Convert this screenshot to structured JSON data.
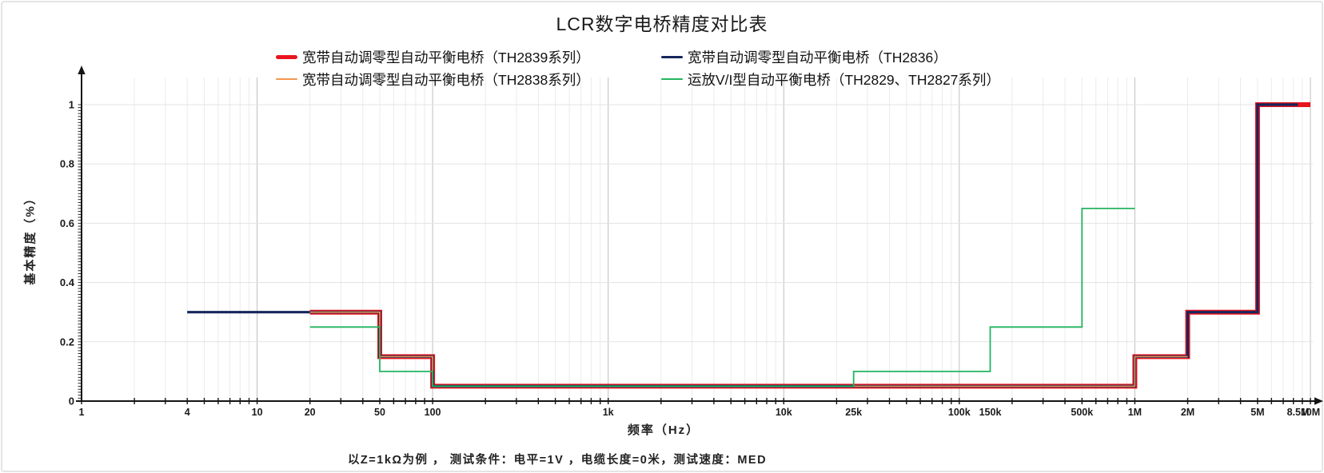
{
  "title": "LCR数字电桥精度对比表",
  "note": "以Z=1kΩ为例 ， 测试条件：电平=1V ，电缆长度=0米，测试速度：MED",
  "chart_data": {
    "type": "line",
    "subtype": "step-accuracy-curves",
    "title": "LCR数字电桥精度对比表",
    "xlabel": "频率（Hz）",
    "ylabel": "基本精度（%）",
    "x_scale": "log",
    "xlim": [
      1,
      10000000
    ],
    "ylim": [
      0,
      1.05
    ],
    "grid": true,
    "legend_position": "top",
    "x_ticks": [
      {
        "value": 1,
        "label": "1"
      },
      {
        "value": 4,
        "label": "4"
      },
      {
        "value": 10,
        "label": "10"
      },
      {
        "value": 20,
        "label": "20"
      },
      {
        "value": 50,
        "label": "50"
      },
      {
        "value": 100,
        "label": "100"
      },
      {
        "value": 1000,
        "label": "1k"
      },
      {
        "value": 10000,
        "label": "10k"
      },
      {
        "value": 25000,
        "label": "25k"
      },
      {
        "value": 100000,
        "label": "100k"
      },
      {
        "value": 150000,
        "label": "150k"
      },
      {
        "value": 500000,
        "label": "500k"
      },
      {
        "value": 1000000,
        "label": "1M"
      },
      {
        "value": 2000000,
        "label": "2M"
      },
      {
        "value": 5000000,
        "label": "5M"
      },
      {
        "value": 8500000,
        "label": "8.5M"
      },
      {
        "value": 10000000,
        "label": "10M"
      }
    ],
    "y_ticks": [
      {
        "value": 0,
        "label": "0"
      },
      {
        "value": 0.2,
        "label": "0.2"
      },
      {
        "value": 0.4,
        "label": "0.4"
      },
      {
        "value": 0.6,
        "label": "0.6"
      },
      {
        "value": 0.8,
        "label": "0.8"
      },
      {
        "value": 1,
        "label": "1"
      }
    ],
    "series": [
      {
        "name": "宽带自动调零型自动平衡电桥（TH2839系列）",
        "color": "#e8141e",
        "width": 6,
        "points": [
          [
            20,
            0.3
          ],
          [
            50,
            0.3
          ],
          [
            50,
            0.15
          ],
          [
            100,
            0.15
          ],
          [
            100,
            0.05
          ],
          [
            1000000,
            0.05
          ],
          [
            1000000,
            0.15
          ],
          [
            2000000,
            0.15
          ],
          [
            2000000,
            0.3
          ],
          [
            5000000,
            0.3
          ],
          [
            5000000,
            1
          ],
          [
            10000000,
            1
          ]
        ]
      },
      {
        "name": "宽带自动调零型自动平衡电桥（TH2836）",
        "color": "#17265c",
        "width": 3.2,
        "points": [
          [
            4,
            0.3
          ],
          [
            50,
            0.3
          ],
          [
            50,
            0.15
          ],
          [
            100,
            0.15
          ],
          [
            100,
            0.05
          ],
          [
            1000000,
            0.05
          ],
          [
            1000000,
            0.15
          ],
          [
            2000000,
            0.15
          ],
          [
            2000000,
            0.3
          ],
          [
            5000000,
            0.3
          ],
          [
            5000000,
            1
          ],
          [
            8500000,
            1
          ]
        ]
      },
      {
        "name": "宽带自动调零型自动平衡电桥（TH2838系列）",
        "color": "#f2974f",
        "width": 1.6,
        "points": [
          [
            20,
            0.3
          ],
          [
            50,
            0.3
          ],
          [
            50,
            0.15
          ],
          [
            100,
            0.15
          ],
          [
            100,
            0.05
          ],
          [
            1000000,
            0.05
          ],
          [
            1000000,
            0.15
          ],
          [
            2000000,
            0.15
          ]
        ]
      },
      {
        "name": "运放V/I型自动平衡电桥（TH2829、TH2827系列）",
        "color": "#22b560",
        "width": 1.8,
        "points": [
          [
            20,
            0.25
          ],
          [
            50,
            0.25
          ],
          [
            50,
            0.1
          ],
          [
            100,
            0.1
          ],
          [
            100,
            0.05
          ],
          [
            25000,
            0.05
          ],
          [
            25000,
            0.1
          ],
          [
            150000,
            0.1
          ],
          [
            150000,
            0.25
          ],
          [
            500000,
            0.25
          ],
          [
            500000,
            0.65
          ],
          [
            1000000,
            0.65
          ]
        ]
      }
    ]
  }
}
